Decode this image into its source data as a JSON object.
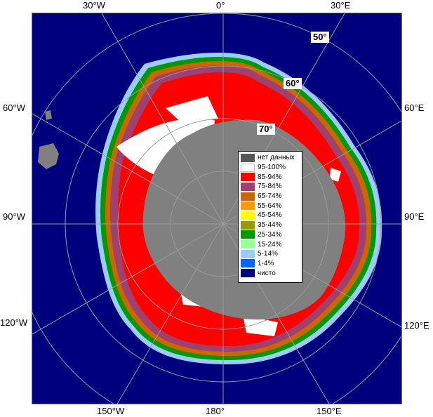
{
  "map": {
    "colors": {
      "ocean": "#00007f",
      "land": "#808080",
      "graticule": "#9a9a9a",
      "frame": "#777777"
    },
    "lon_labels": {
      "top": [
        "30°W",
        "0°",
        "30°E"
      ],
      "left": [
        "60°W",
        "90°W",
        "120°W"
      ],
      "right": [
        "60°E",
        "90°E",
        "120°E"
      ],
      "bottom": [
        "150°W",
        "180°",
        "150°E"
      ]
    },
    "lat_labels": [
      "50°",
      "60°",
      "70°"
    ]
  },
  "legend": {
    "items": [
      {
        "label": "нет данных",
        "color": "#555555"
      },
      {
        "label": "95-100%",
        "color": "#ffffff"
      },
      {
        "label": "85-94%",
        "color": "#ff0000"
      },
      {
        "label": "75-84%",
        "color": "#a0406e"
      },
      {
        "label": "65-74%",
        "color": "#cc6600"
      },
      {
        "label": "55-64%",
        "color": "#ff9900"
      },
      {
        "label": "45-54%",
        "color": "#ffff00"
      },
      {
        "label": "35-44%",
        "color": "#999900"
      },
      {
        "label": "25-34%",
        "color": "#009900"
      },
      {
        "label": "15-24%",
        "color": "#99ff99"
      },
      {
        "label": "5-14%",
        "color": "#99ccff"
      },
      {
        "label": "1-4%",
        "color": "#0066ff"
      },
      {
        "label": "чисто",
        "color": "#00007f"
      }
    ]
  }
}
